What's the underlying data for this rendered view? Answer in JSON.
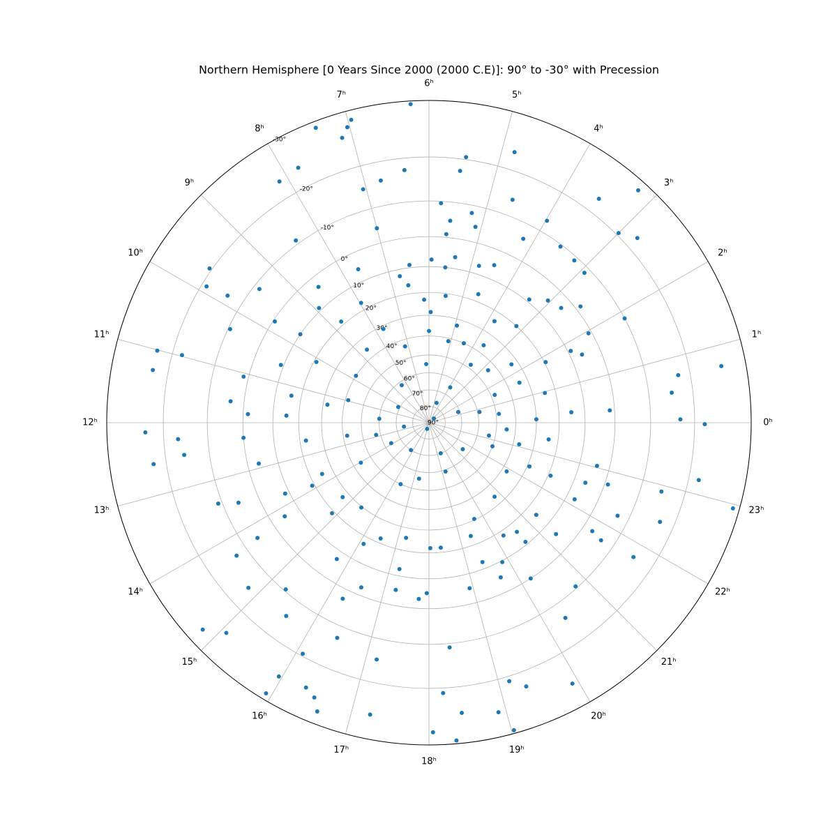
{
  "chart_data": {
    "type": "polar_scatter",
    "title": "Northern Hemisphere [0 Years Since 2000 (2000 C.E)]: 90° to -30° with Precession",
    "projection": "stereographic",
    "theta_zero_location": "E",
    "theta_direction": "counterclockwise",
    "grid": true,
    "color": "#1f77b4",
    "rlim": [
      90,
      -30
    ],
    "rticks": [
      {
        "value": 90,
        "label": "90°"
      },
      {
        "value": 80,
        "label": "80°"
      },
      {
        "value": 70,
        "label": "70°"
      },
      {
        "value": 60,
        "label": "60°"
      },
      {
        "value": 50,
        "label": "50°"
      },
      {
        "value": 40,
        "label": "40°"
      },
      {
        "value": 30,
        "label": "30°"
      },
      {
        "value": 20,
        "label": "20°"
      },
      {
        "value": 10,
        "label": "10°"
      },
      {
        "value": 0,
        "label": "0°"
      },
      {
        "value": -10,
        "label": "-10°"
      },
      {
        "value": -20,
        "label": "-20°"
      },
      {
        "value": -30,
        "label": "-30°"
      }
    ],
    "thetaticks": [
      {
        "value": 0,
        "label": "0ʰ"
      },
      {
        "value": 1,
        "label": "1ʰ"
      },
      {
        "value": 2,
        "label": "2ʰ"
      },
      {
        "value": 3,
        "label": "3ʰ"
      },
      {
        "value": 4,
        "label": "4ʰ"
      },
      {
        "value": 5,
        "label": "5ʰ"
      },
      {
        "value": 6,
        "label": "6ʰ"
      },
      {
        "value": 7,
        "label": "7ʰ"
      },
      {
        "value": 8,
        "label": "8ʰ"
      },
      {
        "value": 9,
        "label": "9ʰ"
      },
      {
        "value": 10,
        "label": "10ʰ"
      },
      {
        "value": 11,
        "label": "11ʰ"
      },
      {
        "value": 12,
        "label": "12ʰ"
      },
      {
        "value": 13,
        "label": "13ʰ"
      },
      {
        "value": 14,
        "label": "14ʰ"
      },
      {
        "value": 15,
        "label": "15ʰ"
      },
      {
        "value": 16,
        "label": "16ʰ"
      },
      {
        "value": 17,
        "label": "17ʰ"
      },
      {
        "value": 18,
        "label": "18ʰ"
      },
      {
        "value": 19,
        "label": "19ʰ"
      },
      {
        "value": 20,
        "label": "20ʰ"
      },
      {
        "value": 21,
        "label": "21ʰ"
      },
      {
        "value": 22,
        "label": "22ʰ"
      },
      {
        "value": 23,
        "label": "23ʰ"
      }
    ],
    "x": [
      6.22,
      6.96,
      7.03,
      7.13,
      7.4,
      7.81,
      8.12,
      8.41,
      7.05,
      6.75,
      6.37,
      7.0,
      5.47,
      5.53,
      4.83,
      4.63,
      5.79,
      5.23,
      5.6,
      5.11,
      5.65,
      5.4,
      5.94,
      6.47,
      6.57,
      6.15,
      5.5,
      5.6,
      6.18,
      6.0,
      3.98,
      3.52,
      3.2,
      3.0,
      2.77,
      2.93,
      1.87,
      0.73,
      0.72,
      0.47,
      0.05,
      23.98,
      22.95,
      23.2,
      22.9,
      22.45,
      21.78,
      22.25,
      21.71,
      19.92,
      20.33,
      20.79,
      19.03,
      19.35,
      19.15,
      18.9,
      18.33,
      18.05,
      18.43,
      18.2,
      18.35,
      17.24,
      17.17,
      16.46,
      16.59,
      16.49,
      16.34,
      15.93,
      15.96,
      16.09,
      14.83,
      15.07,
      14.83,
      14.31,
      13.4,
      12.57,
      12.13,
      12.5,
      12.25,
      11.28,
      11.01,
      10.98,
      9.66,
      9.9,
      9.85,
      10.32,
      9.45,
      11.07,
      11.59,
      12.31,
      13.52,
      12.9,
      14.26,
      14.2,
      15.29,
      15.57,
      16.26,
      16.51,
      17.25,
      17.78,
      17.95,
      18.92,
      19.66,
      20.21,
      19.85,
      20.6,
      21.25,
      21.76,
      22.15,
      23.04,
      0.28,
      0.26,
      1.79,
      1.95,
      2.5,
      2.73,
      3.05,
      3.19,
      4.5,
      4.82,
      3.81,
      4.6,
      4.93,
      5.11,
      2.77,
      2.35,
      1.59,
      0.96,
      0.12,
      23.67,
      23.47,
      23.19,
      0.8,
      1.33,
      3.93,
      4.6,
      16.9,
      2.7,
      12.6,
      10.2,
      11.7,
      12.87,
      13.9,
      15.78,
      19.4,
      21.46,
      19.25,
      17.33,
      16.35,
      14.03,
      12.6,
      10.96,
      9.82,
      8.69,
      7.73,
      7.16,
      8.4,
      11.33,
      13.71,
      14.72,
      15.43,
      16.11,
      16.49,
      17.25,
      18.04,
      18.36,
      19.35,
      19.68,
      20.77,
      20.23,
      20.59,
      21.29,
      22.43,
      22.43,
      21.86,
      22.64,
      23.1,
      1.53,
      0.48,
      3.61,
      3.65,
      4.42,
      5.94,
      10.11,
      9.7,
      8.92,
      8.73,
      7.97,
      7.65,
      6.75,
      11.81,
      11.26,
      13.75,
      13.89,
      14.87,
      15.73,
      17.24,
      19.4,
      22.73,
      22.6,
      1.6,
      1.83,
      3.39,
      3.21,
      4.19,
      3.55,
      8.61,
      9.78,
      10.58,
      11.82,
      12.55
    ],
    "values": [
      -29.5,
      -28.5,
      -27.5,
      -26,
      -29,
      -24,
      -23.5,
      -11,
      -15,
      -16,
      -17.5,
      -4.5,
      -20.5,
      -17.5,
      -23.5,
      -14,
      -9.5,
      -8,
      -5,
      -4.5,
      -1,
      6,
      7.5,
      9,
      16.5,
      23,
      21,
      10,
      55,
      37.5,
      -13,
      -23,
      -28.5,
      -20.5,
      -22.5,
      -8.5,
      -10,
      -26,
      -17.5,
      -15.5,
      -17,
      -22,
      -29,
      -22,
      -15,
      -17,
      -15.5,
      -7,
      -6.5,
      -26,
      -14,
      -9.5,
      -29.5,
      -23,
      -21,
      -26,
      -29.5,
      -28,
      -25,
      -21,
      -11,
      -26,
      -15,
      -13,
      -28,
      -26,
      -25,
      -29,
      -25.5,
      -19.5,
      -27.5,
      -25,
      -15.5,
      -13,
      -11,
      -22.5,
      -23.5,
      -16,
      -17,
      -23,
      -23,
      -18,
      -20.5,
      -19,
      -14,
      -9.5,
      -8.5,
      -1.5,
      -4,
      0,
      -6,
      3.5,
      -6,
      4.5,
      -9.5,
      -14.5,
      -3,
      2.5,
      5,
      3,
      5,
      5,
      5,
      0,
      9.5,
      11,
      5.5,
      -3,
      7,
      4,
      15,
      1.5,
      9,
      1,
      -1.5,
      3.5,
      5,
      20,
      5,
      7,
      24,
      17,
      33,
      41.5,
      44,
      33,
      34,
      24.5,
      30,
      44.5,
      24,
      53.5,
      59,
      71,
      65,
      77,
      86,
      86,
      74.5,
      69,
      60,
      57.5,
      64,
      70,
      70,
      64,
      59,
      56,
      50,
      44,
      42,
      41.5,
      40,
      35.5,
      31.5,
      43.5,
      62,
      32,
      25,
      27,
      29.5,
      17,
      22,
      25.5,
      22,
      22,
      24,
      30.5,
      34,
      18,
      16,
      15.5,
      19,
      29,
      37.5,
      50,
      37,
      48,
      48.5,
      48,
      36,
      40,
      28.5,
      21,
      10,
      9,
      18.5,
      17,
      5.5,
      12.5,
      15,
      16,
      8.5,
      19,
      19,
      7,
      12.5,
      12.5,
      -1,
      6,
      6,
      19.5,
      9,
      -9,
      -6,
      -9.5,
      3.5,
      0.5,
      9,
      1.5,
      22.5
    ]
  }
}
